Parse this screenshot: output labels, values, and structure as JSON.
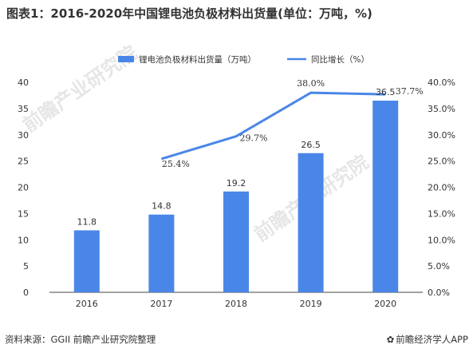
{
  "title": "图表1：2016-2020年中国锂电池负极材料出货量(单位：万吨，%)",
  "source": "资料来源：GGII 前瞻产业研究院整理",
  "footer_brand": "前瞻经济学人APP",
  "watermark": "前瞻产业研究院",
  "colors": {
    "bar": "#4A86E8",
    "line": "#4A86E8",
    "axis": "#444444",
    "text": "#333333"
  },
  "chart_data": {
    "type": "bar",
    "categories": [
      "2016",
      "2017",
      "2018",
      "2019",
      "2020"
    ],
    "series": [
      {
        "name": "锂电池负极材料出货量（万吨）",
        "type": "bar",
        "axis": "left",
        "values": [
          11.8,
          14.8,
          19.2,
          26.5,
          36.5
        ],
        "labels": [
          "11.8",
          "14.8",
          "19.2",
          "26.5",
          "36.5"
        ]
      },
      {
        "name": "同比增长（%）",
        "type": "line",
        "axis": "right",
        "values": [
          null,
          25.4,
          29.7,
          38.0,
          37.7
        ],
        "labels": [
          "",
          "25.4%",
          "29.7%",
          "38.0%",
          "37.7%"
        ]
      }
    ],
    "y_left": {
      "ylim": [
        0,
        40
      ],
      "ticks": [
        "0",
        "5",
        "10",
        "15",
        "20",
        "25",
        "30",
        "35",
        "40"
      ]
    },
    "y_right": {
      "ylim": [
        0,
        40
      ],
      "ticks": [
        "0.0%",
        "5.0%",
        "10.0%",
        "15.0%",
        "20.0%",
        "25.0%",
        "30.0%",
        "35.0%",
        "40.0%"
      ]
    },
    "legend_position": "top",
    "grid": false
  }
}
